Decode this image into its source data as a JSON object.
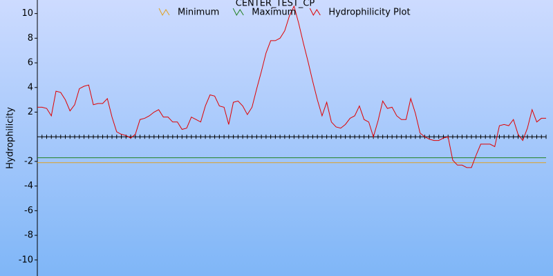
{
  "chart_data": {
    "type": "line",
    "title": "CENTER_TEST_CP",
    "y_label": "Hydrophilicity",
    "ylim": [
      -11.3,
      11.1
    ],
    "yticks": [
      10,
      8,
      6,
      4,
      2,
      -2,
      -4,
      -6,
      -8,
      -10
    ],
    "thresholds": [
      {
        "name": "Minimum",
        "color": "#e0a020",
        "value": -2.1
      },
      {
        "name": "Maximum",
        "color": "#208020",
        "value": -1.7
      }
    ],
    "series": [
      {
        "name": "Hydrophilicity Plot",
        "color": "#e00000",
        "values": [
          2.4,
          2.4,
          2.3,
          1.7,
          3.7,
          3.6,
          3.0,
          2.1,
          2.6,
          3.9,
          4.1,
          4.2,
          2.6,
          2.7,
          2.7,
          3.1,
          1.6,
          0.4,
          0.2,
          0.1,
          -0.1,
          0.2,
          1.4,
          1.5,
          1.7,
          2.0,
          2.2,
          1.6,
          1.6,
          1.2,
          1.2,
          0.6,
          0.7,
          1.6,
          1.4,
          1.2,
          2.5,
          3.4,
          3.3,
          2.5,
          2.4,
          1.0,
          2.8,
          2.9,
          2.5,
          1.8,
          2.4,
          3.9,
          5.3,
          6.8,
          7.8,
          7.8,
          8.0,
          8.6,
          9.8,
          10.6,
          9.2,
          7.6,
          6.1,
          4.5,
          3.0,
          1.7,
          2.8,
          1.2,
          0.8,
          0.7,
          1.0,
          1.5,
          1.7,
          2.5,
          1.4,
          1.2,
          0.0,
          1.3,
          2.9,
          2.3,
          2.4,
          1.7,
          1.4,
          1.4,
          3.1,
          1.9,
          0.3,
          0.0,
          -0.2,
          -0.3,
          -0.3,
          -0.1,
          0.0,
          -1.9,
          -2.3,
          -2.3,
          -2.5,
          -2.5,
          -1.5,
          -0.6,
          -0.6,
          -0.6,
          -0.8,
          0.9,
          1.0,
          0.9,
          1.4,
          0.2,
          -0.3,
          0.7,
          2.2,
          1.2,
          1.5,
          1.5
        ]
      }
    ]
  }
}
